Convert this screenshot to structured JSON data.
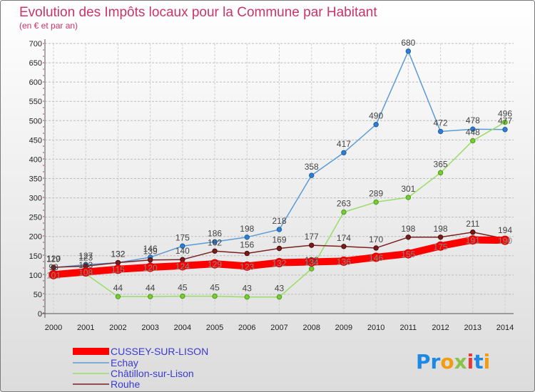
{
  "chart_data": {
    "type": "line",
    "title": "Evolution des Impôts locaux pour la Commune par Habitant",
    "subtitle": "(en € et par an)",
    "x": [
      "2000",
      "2001",
      "2002",
      "2003",
      "2004",
      "2005",
      "2006",
      "2007",
      "2008",
      "2009",
      "2010",
      "2011",
      "2012",
      "2013",
      "2014"
    ],
    "y_ticks": [
      0,
      50,
      100,
      150,
      200,
      250,
      300,
      350,
      400,
      450,
      500,
      550,
      600,
      650,
      700
    ],
    "ylim": [
      0,
      700
    ],
    "grid": true,
    "series": [
      {
        "name": "CUSSEY-SUR-LISON",
        "color": "#ff0000",
        "values": [
          101,
          108,
          115,
          120,
          124,
          129,
          123,
          132,
          134,
          136,
          146,
          155,
          175,
          191,
          190
        ]
      },
      {
        "name": "Echay",
        "color": "#5b9bd5",
        "values": [
          119,
          127,
          132,
          146,
          175,
          186,
          198,
          218,
          358,
          417,
          490,
          680,
          472,
          478,
          477
        ]
      },
      {
        "name": "Châtillon-sur-Lison",
        "color": "#99dd66",
        "values": [
          98,
          103,
          44,
          44,
          45,
          45,
          43,
          43,
          116,
          263,
          289,
          301,
          365,
          448,
          496
        ]
      },
      {
        "name": "Rouhe",
        "color": "#7a2020",
        "values": [
          120,
          123,
          132,
          139,
          140,
          162,
          156,
          169,
          177,
          174,
          170,
          198,
          198,
          211,
          194
        ]
      }
    ],
    "labels": {
      "CUSSEY-SUR-LISON": [
        "101",
        "108",
        "115",
        "120",
        "124",
        "129",
        "123",
        "132",
        "134",
        "136",
        "146",
        "155",
        "175",
        "191",
        "190"
      ],
      "Echay": [
        "119",
        "127",
        "132",
        "146",
        "175",
        "186",
        "198",
        "218",
        "358",
        "417",
        "490",
        "680",
        "472",
        "478",
        "477"
      ],
      "Châtillon-sur-Lison": [
        "98",
        "103",
        "44",
        "44",
        "45",
        "45",
        "43",
        "43",
        "116",
        "263",
        "289",
        "301",
        "365",
        "448",
        "496"
      ],
      "Rouhe": [
        "120",
        "123",
        "132",
        "139",
        "140",
        "162",
        "156",
        "169",
        "177",
        "174",
        "170",
        "198",
        "198",
        "211",
        "194"
      ]
    },
    "legend": [
      {
        "name": "CUSSEY-SUR-LISON"
      },
      {
        "name": "Echay"
      },
      {
        "name": "Châtillon-sur-Lison"
      },
      {
        "name": "Rouhe"
      }
    ]
  },
  "brand": "Proxiti"
}
